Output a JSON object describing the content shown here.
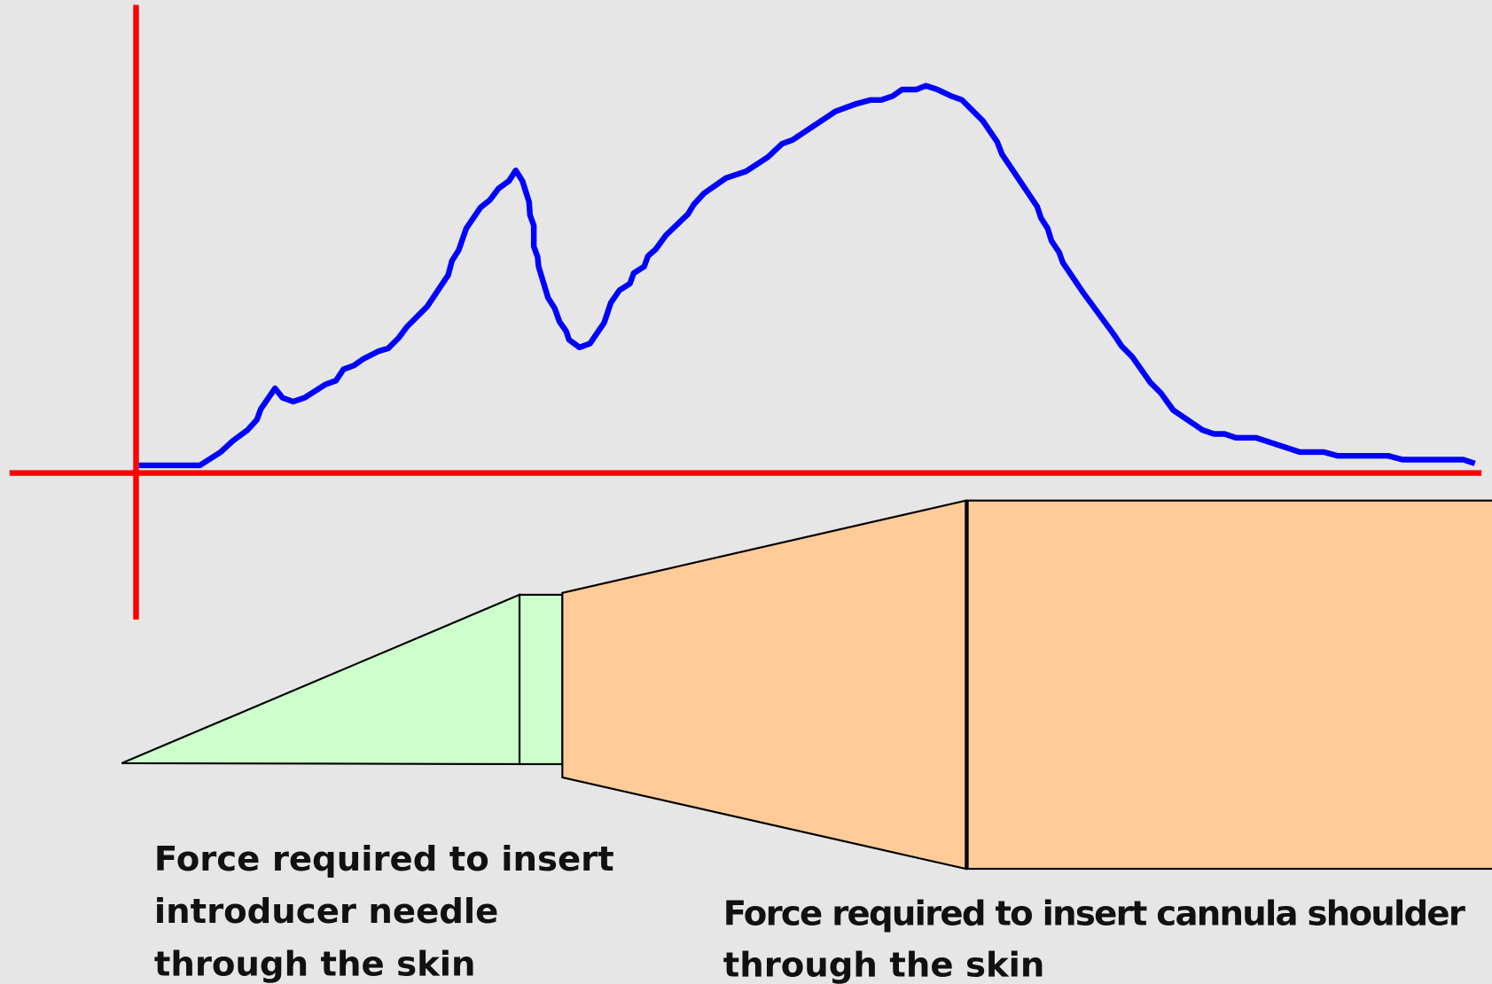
{
  "labels": [
    {
      "lines": [
        "Force required to insert",
        "introducer needle",
        "through the skin"
      ]
    },
    {
      "lines": [
        "Force required to insert cannula shoulder",
        "through the skin"
      ]
    }
  ]
}
